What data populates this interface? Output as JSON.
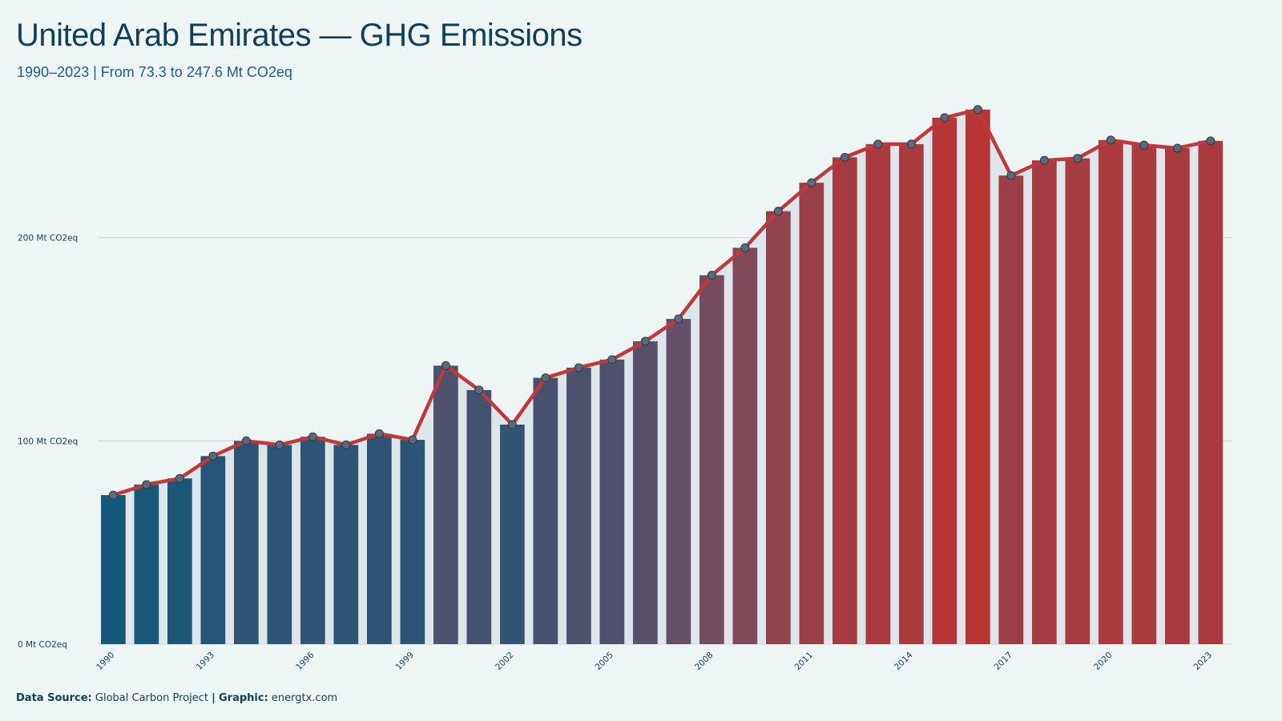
{
  "title": "United Arab Emirates — GHG Emissions",
  "subtitle": "1990–2023 | From 73.3 to 247.6 Mt CO2eq",
  "footer": {
    "source_label": "Data Source:",
    "source": "Global Carbon Project",
    "separator": "|",
    "graphic_label": "Graphic:",
    "graphic": "energtx.com"
  },
  "colors": {
    "low": "#14577a",
    "mid": "#6a4f66",
    "high": "#b73535",
    "line": "#c0393a",
    "point_fill": "#5a6a7a",
    "band": "#dde6ea",
    "grid": "#c9d3d7"
  },
  "chart_data": {
    "type": "bar",
    "x": [
      1990,
      1991,
      1992,
      1993,
      1994,
      1995,
      1996,
      1997,
      1998,
      1999,
      2000,
      2001,
      2002,
      2003,
      2004,
      2005,
      2006,
      2007,
      2008,
      2009,
      2010,
      2011,
      2012,
      2013,
      2014,
      2015,
      2016,
      2017,
      2018,
      2019,
      2020,
      2021,
      2022,
      2023
    ],
    "values": [
      73.3,
      78.5,
      81.5,
      92.5,
      100,
      98,
      102,
      98,
      103.5,
      100.5,
      137,
      125,
      108,
      131,
      136,
      140,
      149,
      160,
      181.5,
      195,
      213,
      227,
      239.5,
      246,
      246,
      259,
      263,
      230.5,
      238,
      239,
      248,
      245.5,
      244,
      247.6
    ],
    "overlay_line": true,
    "y_ticks": [
      0,
      100,
      200
    ],
    "y_tick_labels": [
      "0 Mt CO2eq",
      "100 Mt CO2eq",
      "200 Mt CO2eq"
    ],
    "x_tick_labels": [
      "1990",
      "1993",
      "1996",
      "1999",
      "2002",
      "2005",
      "2008",
      "2011",
      "2014",
      "2017",
      "2020",
      "2023"
    ],
    "ylim": [
      0,
      270
    ],
    "grid": "horizontal"
  }
}
